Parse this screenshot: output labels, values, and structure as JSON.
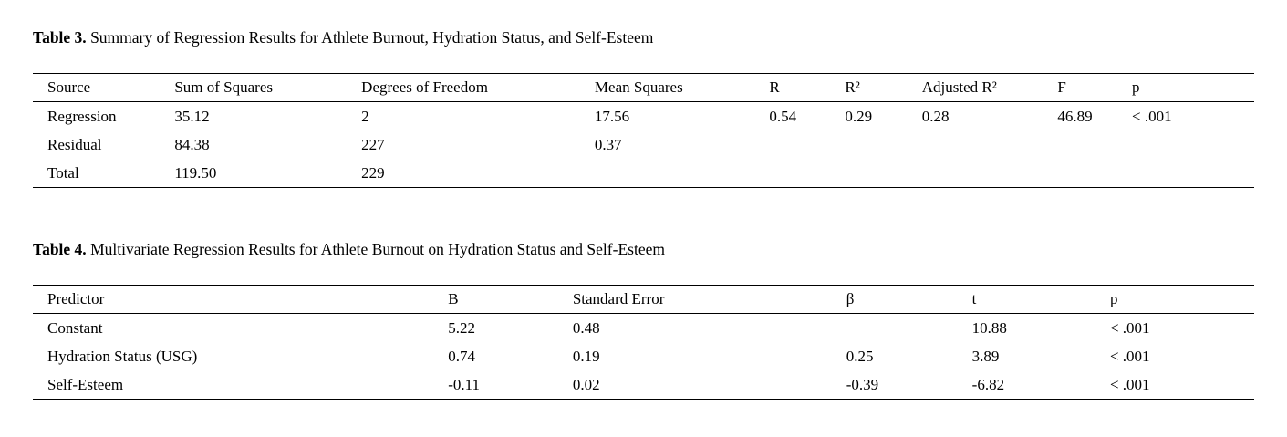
{
  "page": {
    "background": "#ffffff",
    "text_color": "#000000"
  },
  "tables": [
    {
      "id": "table-3",
      "title_label": "Table 3.",
      "title_text": " Summary of Regression Results for Athlete Burnout, Hydration Status, and Self-Esteem",
      "headers": [
        "Source",
        "Sum of Squares",
        "Degrees of Freedom",
        "Mean Squares",
        "R",
        "R²",
        "Adjusted R²",
        "F",
        "p"
      ],
      "col_widths": [
        "11.6%",
        "15.3%",
        "19.1%",
        "14.3%",
        "6.2%",
        "6.3%",
        "11.1%",
        "6.1%",
        "10.0%"
      ],
      "rows": [
        [
          "Regression",
          "35.12",
          "2",
          "17.56",
          "0.54",
          "0.29",
          "0.28",
          "46.89",
          "< .001"
        ],
        [
          "Residual",
          "84.38",
          "227",
          "0.37",
          "",
          "",
          "",
          "",
          ""
        ],
        [
          "Total",
          "119.50",
          "229",
          "",
          "",
          "",
          "",
          "",
          ""
        ]
      ]
    },
    {
      "id": "table-4",
      "title_label": "Table 4.",
      "title_text": " Multivariate Regression Results for Athlete Burnout on Hydration Status and Self-Esteem",
      "headers": [
        "Predictor",
        "B",
        "Standard Error",
        "β",
        "t",
        "p"
      ],
      "col_widths": [
        "34.0%",
        "10.2%",
        "22.4%",
        "10.3%",
        "11.3%",
        "11.8%"
      ],
      "rows": [
        [
          "Constant",
          "5.22",
          "0.48",
          "",
          "10.88",
          "< .001"
        ],
        [
          "Hydration Status (USG)",
          "0.74",
          "0.19",
          "0.25",
          "3.89",
          "< .001"
        ],
        [
          "Self-Esteem",
          "-0.11",
          "0.02",
          "-0.39",
          "-6.82",
          "< .001"
        ]
      ]
    }
  ]
}
